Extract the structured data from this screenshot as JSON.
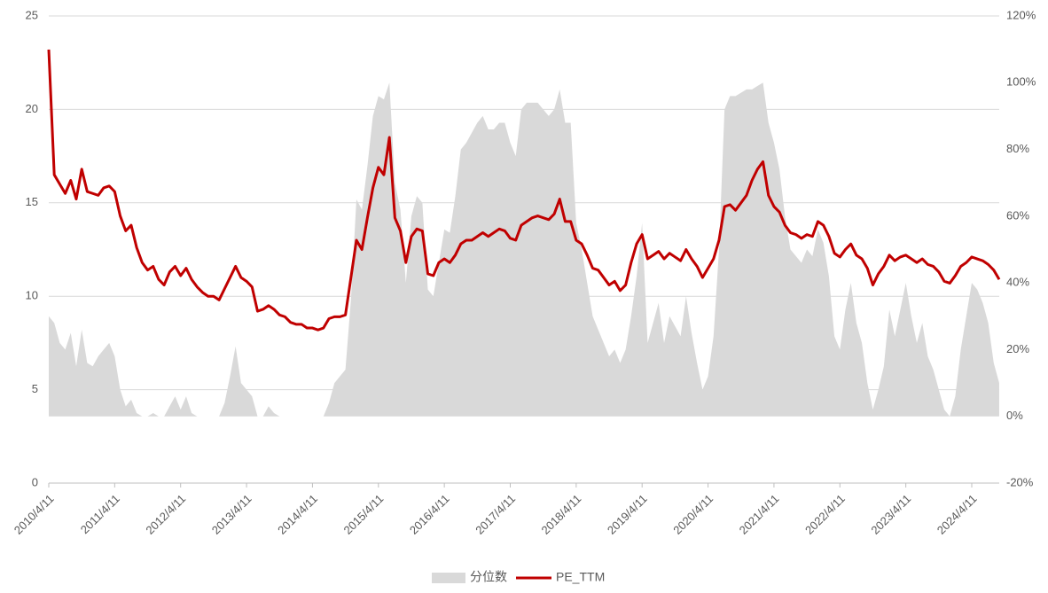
{
  "chart_data": {
    "type": "line",
    "categories": [
      "2010/4/11",
      null,
      null,
      null,
      null,
      null,
      null,
      null,
      null,
      null,
      null,
      null,
      "2011/4/11",
      null,
      null,
      null,
      null,
      null,
      null,
      null,
      null,
      null,
      null,
      null,
      "2012/4/11",
      null,
      null,
      null,
      null,
      null,
      null,
      null,
      null,
      null,
      null,
      null,
      "2013/4/11",
      null,
      null,
      null,
      null,
      null,
      null,
      null,
      null,
      null,
      null,
      null,
      "2014/4/11",
      null,
      null,
      null,
      null,
      null,
      null,
      null,
      null,
      null,
      null,
      null,
      "2015/4/11",
      null,
      null,
      null,
      null,
      null,
      null,
      null,
      null,
      null,
      null,
      null,
      "2016/4/11",
      null,
      null,
      null,
      null,
      null,
      null,
      null,
      null,
      null,
      null,
      null,
      "2017/4/11",
      null,
      null,
      null,
      null,
      null,
      null,
      null,
      null,
      null,
      null,
      null,
      "2018/4/11",
      null,
      null,
      null,
      null,
      null,
      null,
      null,
      null,
      null,
      null,
      null,
      "2019/4/11",
      null,
      null,
      null,
      null,
      null,
      null,
      null,
      null,
      null,
      null,
      null,
      "2020/4/11",
      null,
      null,
      null,
      null,
      null,
      null,
      null,
      null,
      null,
      null,
      null,
      "2021/4/11",
      null,
      null,
      null,
      null,
      null,
      null,
      null,
      null,
      null,
      null,
      null,
      "2022/4/11",
      null,
      null,
      null,
      null,
      null,
      null,
      null,
      null,
      null,
      null,
      null,
      "2023/4/11",
      null,
      null,
      null,
      null,
      null,
      null,
      null,
      null,
      null,
      null,
      null,
      "2024/4/11",
      null,
      null,
      null,
      null,
      null
    ],
    "series": [
      {
        "name": "分位数",
        "color": "#d9d9d9",
        "axis": "y2",
        "kind": "area",
        "values": [
          30,
          28,
          22,
          20,
          25,
          15,
          26,
          16,
          15,
          18,
          20,
          22,
          18,
          8,
          3,
          5,
          1,
          0,
          0,
          1,
          0,
          0,
          3,
          6,
          2,
          6,
          1,
          0,
          0,
          0,
          0,
          0,
          4,
          12,
          21,
          10,
          8,
          6,
          0,
          0,
          3,
          1,
          0,
          0,
          0,
          0,
          0,
          0,
          0,
          0,
          0,
          4,
          10,
          12,
          14,
          35,
          65,
          62,
          75,
          90,
          96,
          95,
          100,
          70,
          62,
          40,
          60,
          66,
          64,
          38,
          36,
          46,
          56,
          55,
          66,
          80,
          82,
          85,
          88,
          90,
          86,
          86,
          88,
          88,
          82,
          78,
          92,
          94,
          94,
          94,
          92,
          90,
          92,
          98,
          88,
          88,
          58,
          50,
          40,
          30,
          26,
          22,
          18,
          20,
          16,
          20,
          30,
          42,
          58,
          22,
          28,
          34,
          22,
          30,
          27,
          24,
          36,
          25,
          16,
          8,
          12,
          24,
          50,
          92,
          96,
          96,
          97,
          98,
          98,
          99,
          100,
          88,
          82,
          74,
          60,
          50,
          48,
          46,
          50,
          48,
          56,
          52,
          42,
          24,
          20,
          32,
          40,
          28,
          22,
          10,
          2,
          8,
          15,
          32,
          24,
          32,
          40,
          30,
          22,
          28,
          18,
          14,
          8,
          2,
          0,
          6,
          20,
          30,
          40,
          38,
          34,
          28,
          16,
          10
        ]
      },
      {
        "name": "PE_TTM",
        "color": "#c00000",
        "kind": "line",
        "values": [
          23.2,
          16.5,
          16,
          15.5,
          16.2,
          15.2,
          16.8,
          15.6,
          15.5,
          15.4,
          15.8,
          15.9,
          15.6,
          14.3,
          13.5,
          13.8,
          12.6,
          11.8,
          11.4,
          11.6,
          10.9,
          10.6,
          11.3,
          11.6,
          11.1,
          11.5,
          10.9,
          10.5,
          10.2,
          10.0,
          10.0,
          9.8,
          10.4,
          11.0,
          11.6,
          11.0,
          10.8,
          10.5,
          9.2,
          9.3,
          9.5,
          9.3,
          9.0,
          8.9,
          8.6,
          8.5,
          8.5,
          8.3,
          8.3,
          8.2,
          8.3,
          8.8,
          8.9,
          8.9,
          9.0,
          11.0,
          13.0,
          12.5,
          14.2,
          15.8,
          16.9,
          16.5,
          18.5,
          14.2,
          13.5,
          11.8,
          13.2,
          13.6,
          13.5,
          11.2,
          11.1,
          11.8,
          12.0,
          11.8,
          12.2,
          12.8,
          13.0,
          13.0,
          13.2,
          13.4,
          13.2,
          13.4,
          13.6,
          13.5,
          13.1,
          13.0,
          13.8,
          14.0,
          14.2,
          14.3,
          14.2,
          14.1,
          14.4,
          15.2,
          14.0,
          14.0,
          13.0,
          12.8,
          12.2,
          11.5,
          11.4,
          11.0,
          10.6,
          10.8,
          10.3,
          10.6,
          11.8,
          12.8,
          13.3,
          12.0,
          12.2,
          12.4,
          12.0,
          12.3,
          12.1,
          11.9,
          12.5,
          12.0,
          11.6,
          11.0,
          11.5,
          12.0,
          13.0,
          14.8,
          14.9,
          14.6,
          15.0,
          15.4,
          16.2,
          16.8,
          17.2,
          15.4,
          14.8,
          14.5,
          13.8,
          13.4,
          13.3,
          13.1,
          13.3,
          13.2,
          14.0,
          13.8,
          13.2,
          12.3,
          12.1,
          12.5,
          12.8,
          12.2,
          12.0,
          11.5,
          10.6,
          11.2,
          11.6,
          12.2,
          11.9,
          12.1,
          12.2,
          12.0,
          11.8,
          12.0,
          11.7,
          11.6,
          11.3,
          10.8,
          10.7,
          11.1,
          11.6,
          11.8,
          12.1,
          12.0,
          11.9,
          11.7,
          11.4,
          10.9
        ]
      }
    ],
    "ylim": [
      0,
      25
    ],
    "yticks": [
      0,
      5,
      10,
      15,
      20,
      25
    ],
    "y2lim": [
      -20,
      120
    ],
    "y2ticks": [
      {
        "value": -20,
        "label": "-20%"
      },
      {
        "value": 0,
        "label": "0%"
      },
      {
        "value": 20,
        "label": "20%"
      },
      {
        "value": 40,
        "label": "40%"
      },
      {
        "value": 60,
        "label": "60%"
      },
      {
        "value": 80,
        "label": "80%"
      },
      {
        "value": 100,
        "label": "100%"
      },
      {
        "value": 120,
        "label": "120%"
      }
    ],
    "grid": true,
    "legend": "bottom"
  }
}
